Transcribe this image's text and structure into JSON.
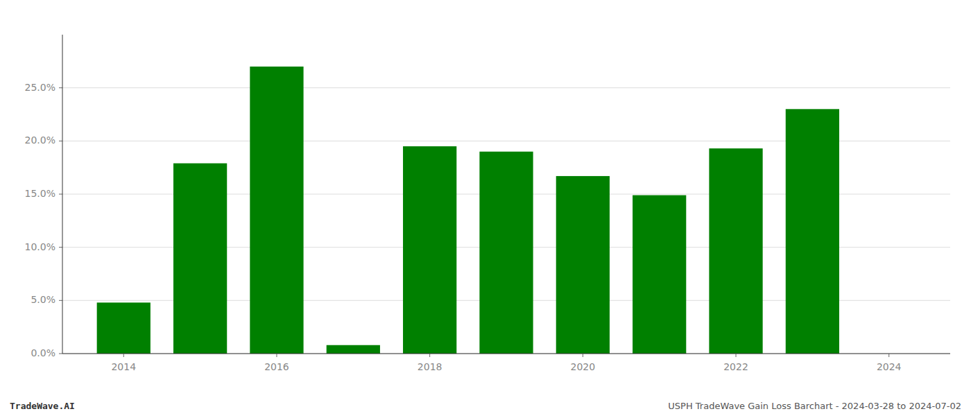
{
  "chart_data": {
    "type": "bar",
    "x": [
      2014,
      2015,
      2016,
      2017,
      2018,
      2019,
      2020,
      2021,
      2022,
      2023,
      2024
    ],
    "values": [
      0.048,
      0.179,
      0.27,
      0.008,
      0.195,
      0.19,
      0.167,
      0.149,
      0.193,
      0.23,
      null
    ],
    "color": "#008000",
    "xlim": [
      2013.2,
      2024.8
    ],
    "xticks": [
      2014,
      2016,
      2018,
      2020,
      2022,
      2024
    ],
    "ylim": [
      0,
      0.3
    ],
    "yticks": [
      {
        "value": 0.0,
        "label": "0.0%"
      },
      {
        "value": 0.05,
        "label": "5.0%"
      },
      {
        "value": 0.1,
        "label": "10.0%"
      },
      {
        "value": 0.15,
        "label": "15.0%"
      },
      {
        "value": 0.2,
        "label": "20.0%"
      },
      {
        "value": 0.25,
        "label": "25.0%"
      }
    ],
    "grid": true,
    "annotations": [
      "TradeWave.AI",
      "USPH TradeWave Gain Loss Barchart - 2024-03-28 to 2024-07-02"
    ]
  }
}
